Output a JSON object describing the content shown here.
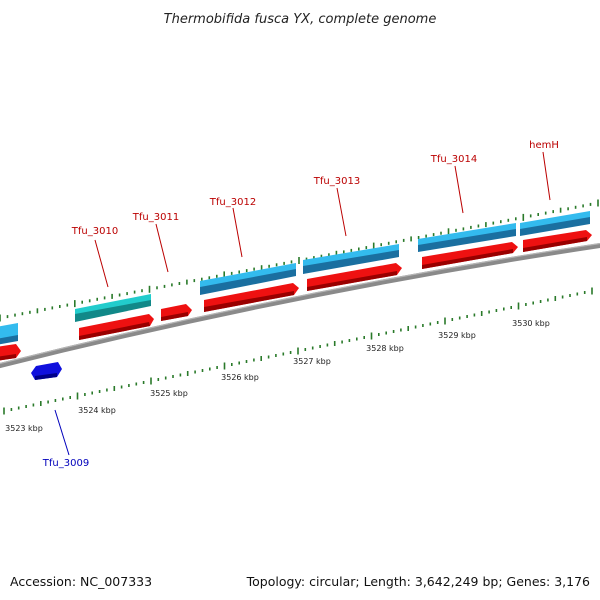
{
  "header": {
    "title": "Thermobifida fusca YX, complete genome"
  },
  "footer": {
    "accession": "Accession: NC_007333",
    "summary": "Topology: circular; Length: 3,642,249 bp; Genes: 3,176"
  },
  "colors": {
    "backbone": "#808080",
    "forward_cds": "#33bbee",
    "forward_cds_selected": "#22cccc",
    "reverse_cds": "#ee1111",
    "reverse_other": "#1010dd",
    "tick": "#2a7a2a",
    "label_forward": "#bb0000",
    "label_reverse": "#0000bb"
  },
  "genes": [
    {
      "name": "Tfu_3009",
      "strand": "reverse",
      "color": "reverse_other",
      "labelled": true
    },
    {
      "name": "Tfu_3010",
      "strand": "forward",
      "color": "forward_cds_selected",
      "labelled": true
    },
    {
      "name": "Tfu_3011",
      "strand": "reverse",
      "color": "reverse_cds",
      "labelled": true
    },
    {
      "name": "Tfu_3012",
      "strand": "forward",
      "color": "forward_cds",
      "labelled": true
    },
    {
      "name": "Tfu_3013",
      "strand": "forward",
      "color": "forward_cds",
      "labelled": true
    },
    {
      "name": "Tfu_3014",
      "strand": "forward",
      "color": "forward_cds",
      "labelled": true
    },
    {
      "name": "hemH",
      "strand": "forward",
      "color": "forward_cds",
      "labelled": true
    }
  ],
  "ticks": [
    {
      "label": "3523 kbp"
    },
    {
      "label": "3524 kbp"
    },
    {
      "label": "3525 kbp"
    },
    {
      "label": "3526 kbp"
    },
    {
      "label": "3527 kbp"
    },
    {
      "label": "3528 kbp"
    },
    {
      "label": "3529 kbp"
    },
    {
      "label": "3530 kbp"
    }
  ]
}
